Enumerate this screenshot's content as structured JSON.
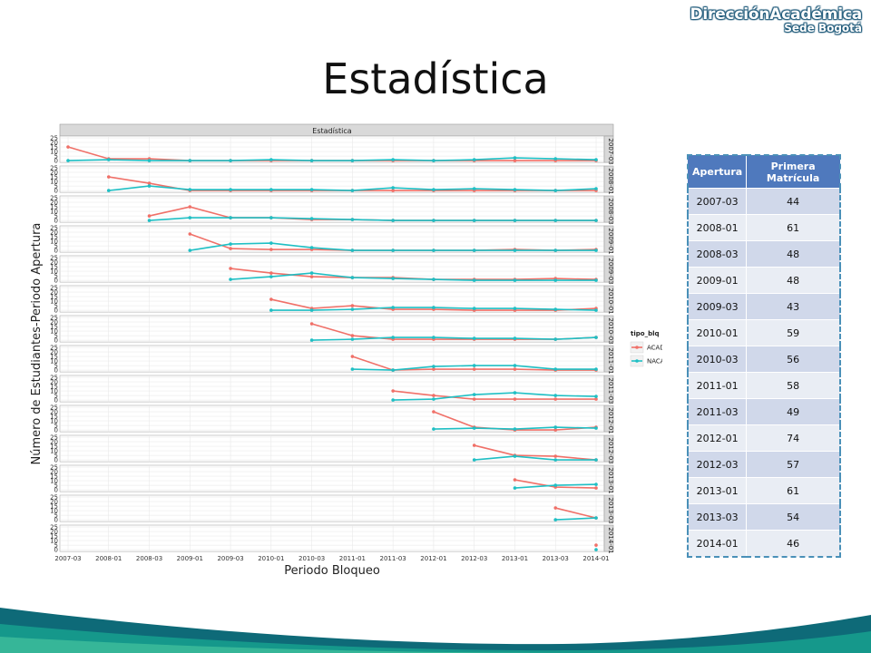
{
  "logo": {
    "main": "DirecciónAcadémica",
    "sub": "Sede Bogotá"
  },
  "slide_title": "Estadística",
  "table": {
    "headers": [
      "Apertura",
      "Primera Matrícula"
    ],
    "rows": [
      [
        "2007-03",
        "44"
      ],
      [
        "2008-01",
        "61"
      ],
      [
        "2008-03",
        "48"
      ],
      [
        "2009-01",
        "48"
      ],
      [
        "2009-03",
        "43"
      ],
      [
        "2010-01",
        "59"
      ],
      [
        "2010-03",
        "56"
      ],
      [
        "2011-01",
        "58"
      ],
      [
        "2011-03",
        "49"
      ],
      [
        "2012-01",
        "74"
      ],
      [
        "2012-03",
        "57"
      ],
      [
        "2013-01",
        "61"
      ],
      [
        "2013-03",
        "54"
      ],
      [
        "2014-01",
        "46"
      ]
    ]
  },
  "chart_data": {
    "type": "line",
    "title": "Estadística",
    "xlabel": "Periodo Bloqueo",
    "ylabel": "Número de Estudiantes-Periodo Apertura",
    "categories": [
      "2007-03",
      "2008-01",
      "2008-03",
      "2009-01",
      "2009-03",
      "2010-01",
      "2010-03",
      "2011-01",
      "2011-03",
      "2012-01",
      "2012-03",
      "2013-01",
      "2013-03",
      "2014-01"
    ],
    "ylim": [
      0,
      25
    ],
    "yticks": [
      0,
      5,
      10,
      15,
      20,
      25
    ],
    "grid": true,
    "legend": {
      "title": "tipo_blq",
      "position": "right",
      "entries": [
        "ACAD",
        "NACAD"
      ]
    },
    "colors": {
      "ACAD": "#f07068",
      "NACAD": "#1fbfc4",
      "strip": "#d9d9d9",
      "panel_bg": "#ffffff",
      "grid": "#e6e6e6"
    },
    "panels": [
      {
        "label": "2007-03",
        "series": [
          {
            "name": "ACAD",
            "values": [
              15,
              2,
              2,
              0,
              0,
              0,
              0,
              0,
              0,
              0,
              0,
              0,
              0,
              0
            ]
          },
          {
            "name": "NACAD",
            "values": [
              0,
              1,
              0,
              0,
              0,
              1,
              0,
              0,
              1,
              0,
              1,
              3,
              2,
              1
            ]
          }
        ]
      },
      {
        "label": "2008-01",
        "series": [
          {
            "name": "ACAD",
            "values": [
              null,
              15,
              8,
              0,
              0,
              0,
              0,
              0,
              0,
              0,
              0,
              0,
              0,
              0
            ]
          },
          {
            "name": "NACAD",
            "values": [
              null,
              0,
              5,
              1,
              1,
              1,
              1,
              0,
              3,
              1,
              2,
              1,
              0,
              2
            ]
          }
        ]
      },
      {
        "label": "2008-03",
        "series": [
          {
            "name": "ACAD",
            "values": [
              null,
              null,
              5,
              15,
              3,
              3,
              1,
              1,
              0,
              0,
              0,
              0,
              0,
              0
            ]
          },
          {
            "name": "NACAD",
            "values": [
              null,
              null,
              0,
              3,
              3,
              3,
              2,
              1,
              0,
              0,
              0,
              0,
              0,
              0
            ]
          }
        ]
      },
      {
        "label": "2009-01",
        "series": [
          {
            "name": "ACAD",
            "values": [
              null,
              null,
              null,
              18,
              2,
              1,
              1,
              0,
              0,
              0,
              0,
              1,
              0,
              1
            ]
          },
          {
            "name": "NACAD",
            "values": [
              null,
              null,
              null,
              0,
              7,
              8,
              3,
              0,
              0,
              0,
              0,
              0,
              0,
              0
            ]
          }
        ]
      },
      {
        "label": "2009-03",
        "series": [
          {
            "name": "ACAD",
            "values": [
              null,
              null,
              null,
              null,
              13,
              8,
              4,
              3,
              3,
              1,
              1,
              1,
              2,
              1
            ]
          },
          {
            "name": "NACAD",
            "values": [
              null,
              null,
              null,
              null,
              1,
              4,
              8,
              3,
              2,
              1,
              0,
              0,
              0,
              0
            ]
          }
        ]
      },
      {
        "label": "2010-01",
        "series": [
          {
            "name": "ACAD",
            "values": [
              null,
              null,
              null,
              null,
              null,
              12,
              2,
              5,
              1,
              1,
              0,
              0,
              0,
              2
            ]
          },
          {
            "name": "NACAD",
            "values": [
              null,
              null,
              null,
              null,
              null,
              0,
              0,
              1,
              3,
              3,
              2,
              2,
              1,
              0
            ]
          }
        ]
      },
      {
        "label": "2010-03",
        "series": [
          {
            "name": "ACAD",
            "values": [
              null,
              null,
              null,
              null,
              null,
              null,
              18,
              5,
              1,
              1,
              1,
              1,
              1,
              3
            ]
          },
          {
            "name": "NACAD",
            "values": [
              null,
              null,
              null,
              null,
              null,
              null,
              0,
              1,
              3,
              3,
              2,
              2,
              1,
              3
            ]
          }
        ]
      },
      {
        "label": "2011-01",
        "series": [
          {
            "name": "ACAD",
            "values": [
              null,
              null,
              null,
              null,
              null,
              null,
              null,
              15,
              0,
              1,
              1,
              1,
              0,
              0
            ]
          },
          {
            "name": "NACAD",
            "values": [
              null,
              null,
              null,
              null,
              null,
              null,
              null,
              1,
              0,
              4,
              5,
              5,
              1,
              1
            ]
          }
        ]
      },
      {
        "label": "2011-03",
        "series": [
          {
            "name": "ACAD",
            "values": [
              null,
              null,
              null,
              null,
              null,
              null,
              null,
              null,
              10,
              5,
              1,
              1,
              1,
              1
            ]
          },
          {
            "name": "NACAD",
            "values": [
              null,
              null,
              null,
              null,
              null,
              null,
              null,
              null,
              0,
              1,
              6,
              8,
              5,
              4
            ]
          }
        ]
      },
      {
        "label": "2012-01",
        "series": [
          {
            "name": "ACAD",
            "values": [
              null,
              null,
              null,
              null,
              null,
              null,
              null,
              null,
              null,
              20,
              3,
              0,
              0,
              3
            ]
          },
          {
            "name": "NACAD",
            "values": [
              null,
              null,
              null,
              null,
              null,
              null,
              null,
              null,
              null,
              1,
              2,
              1,
              3,
              2
            ]
          }
        ]
      },
      {
        "label": "2012-03",
        "series": [
          {
            "name": "ACAD",
            "values": [
              null,
              null,
              null,
              null,
              null,
              null,
              null,
              null,
              null,
              null,
              16,
              5,
              4,
              0
            ]
          },
          {
            "name": "NACAD",
            "values": [
              null,
              null,
              null,
              null,
              null,
              null,
              null,
              null,
              null,
              null,
              0,
              4,
              0,
              0
            ]
          }
        ]
      },
      {
        "label": "2013-01",
        "series": [
          {
            "name": "ACAD",
            "values": [
              null,
              null,
              null,
              null,
              null,
              null,
              null,
              null,
              null,
              null,
              null,
              11,
              3,
              2
            ]
          },
          {
            "name": "NACAD",
            "values": [
              null,
              null,
              null,
              null,
              null,
              null,
              null,
              null,
              null,
              null,
              null,
              2,
              5,
              6
            ]
          }
        ]
      },
      {
        "label": "2013-03",
        "series": [
          {
            "name": "ACAD",
            "values": [
              null,
              null,
              null,
              null,
              null,
              null,
              null,
              null,
              null,
              null,
              null,
              null,
              13,
              2
            ]
          },
          {
            "name": "NACAD",
            "values": [
              null,
              null,
              null,
              null,
              null,
              null,
              null,
              null,
              null,
              null,
              null,
              null,
              0,
              2
            ]
          }
        ]
      },
      {
        "label": "2014-01",
        "series": [
          {
            "name": "ACAD",
            "values": [
              null,
              null,
              null,
              null,
              null,
              null,
              null,
              null,
              null,
              null,
              null,
              null,
              null,
              5
            ]
          },
          {
            "name": "NACAD",
            "values": [
              null,
              null,
              null,
              null,
              null,
              null,
              null,
              null,
              null,
              null,
              null,
              null,
              null,
              0
            ]
          }
        ]
      }
    ]
  }
}
